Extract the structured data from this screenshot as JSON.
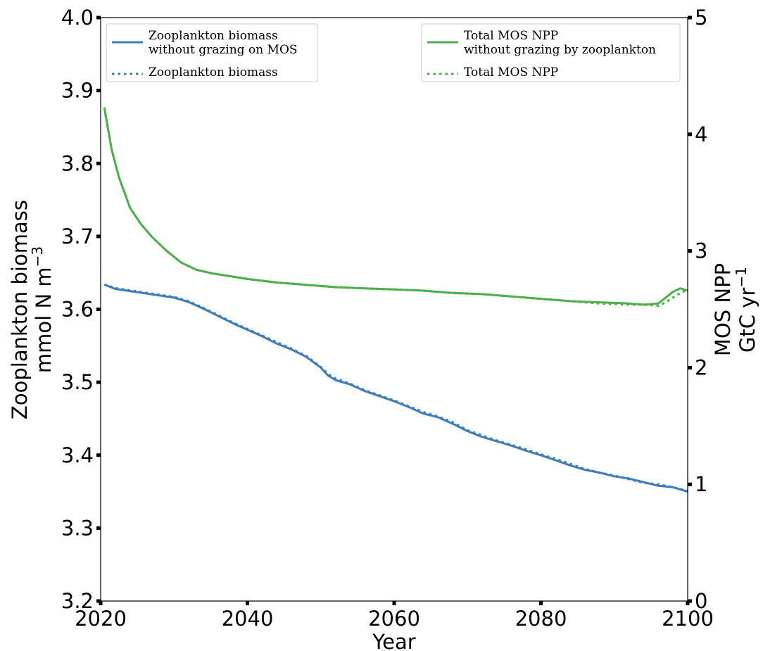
{
  "chart_data": {
    "type": "line",
    "xlabel": "Year",
    "xlim": [
      2020,
      2100
    ],
    "xticks": [
      2020,
      2040,
      2060,
      2080,
      2100
    ],
    "left_axis": {
      "label_line1": "Zooplankton biomass",
      "label_line2_prefix": "mmol N m",
      "label_line2_sup": "−3",
      "ylim": [
        3.2,
        4.0
      ],
      "ticks": [
        "3.2",
        "3.3",
        "3.4",
        "3.5",
        "3.6",
        "3.7",
        "3.8",
        "3.9",
        "4.0"
      ]
    },
    "right_axis": {
      "label_line1": "MOS NPP",
      "label_line2_prefix": "GtC yr",
      "label_line2_sup": "−1",
      "ylim": [
        0,
        5
      ],
      "ticks": [
        "0",
        "1",
        "2",
        "3",
        "4",
        "5"
      ]
    },
    "grid": false,
    "series": [
      {
        "name": "Zooplankton biomass without grazing on MOS",
        "axis": "left",
        "color": "#3a7dbf",
        "style": "solid",
        "x": [
          2020.5,
          2022,
          2024,
          2026,
          2028,
          2030,
          2032,
          2034,
          2036,
          2038,
          2040,
          2042,
          2044,
          2046,
          2048,
          2050,
          2051,
          2052,
          2054,
          2056,
          2058,
          2060,
          2062,
          2064,
          2066,
          2068,
          2070,
          2072,
          2074,
          2076,
          2078,
          2080,
          2082,
          2084,
          2086,
          2088,
          2090,
          2092,
          2094,
          2096,
          2098,
          2100
        ],
        "y": [
          3.634,
          3.628,
          3.625,
          3.622,
          3.619,
          3.616,
          3.61,
          3.601,
          3.591,
          3.581,
          3.572,
          3.563,
          3.553,
          3.545,
          3.535,
          3.52,
          3.509,
          3.503,
          3.497,
          3.488,
          3.481,
          3.474,
          3.466,
          3.457,
          3.452,
          3.443,
          3.433,
          3.425,
          3.419,
          3.413,
          3.406,
          3.4,
          3.393,
          3.386,
          3.38,
          3.376,
          3.371,
          3.368,
          3.363,
          3.358,
          3.356,
          3.35
        ]
      },
      {
        "name": "Zooplankton biomass",
        "axis": "left",
        "color": "#3a7dbf",
        "style": "dotted",
        "x": [
          2020.5,
          2022,
          2024,
          2026,
          2028,
          2030,
          2032,
          2034,
          2036,
          2038,
          2040,
          2042,
          2044,
          2046,
          2048,
          2050,
          2051,
          2052,
          2054,
          2056,
          2058,
          2060,
          2062,
          2064,
          2066,
          2068,
          2070,
          2072,
          2074,
          2076,
          2078,
          2080,
          2082,
          2084,
          2086,
          2088,
          2090,
          2092,
          2094,
          2096,
          2098,
          2100
        ],
        "y": [
          3.634,
          3.629,
          3.626,
          3.623,
          3.62,
          3.617,
          3.611,
          3.602,
          3.592,
          3.582,
          3.573,
          3.564,
          3.555,
          3.546,
          3.536,
          3.521,
          3.511,
          3.505,
          3.498,
          3.489,
          3.482,
          3.475,
          3.467,
          3.459,
          3.453,
          3.445,
          3.434,
          3.427,
          3.42,
          3.414,
          3.408,
          3.401,
          3.395,
          3.388,
          3.381,
          3.376,
          3.372,
          3.367,
          3.362,
          3.36,
          3.356,
          3.351
        ]
      },
      {
        "name": "Total MOS NPP without grazing by zooplankton",
        "axis": "right",
        "color": "#4daf4a",
        "style": "solid",
        "x": [
          2020.5,
          2021.5,
          2022.5,
          2024,
          2025.5,
          2027,
          2029,
          2031,
          2033,
          2035,
          2037,
          2040,
          2044,
          2048,
          2052,
          2056,
          2060,
          2064,
          2068,
          2072,
          2076,
          2080,
          2084,
          2088,
          2092,
          2094,
          2096,
          2097,
          2098,
          2099,
          2100
        ],
        "y": [
          4.23,
          3.87,
          3.63,
          3.37,
          3.23,
          3.12,
          3.0,
          2.9,
          2.84,
          2.81,
          2.79,
          2.76,
          2.73,
          2.71,
          2.69,
          2.68,
          2.67,
          2.66,
          2.64,
          2.63,
          2.61,
          2.59,
          2.57,
          2.56,
          2.55,
          2.54,
          2.55,
          2.6,
          2.65,
          2.68,
          2.66
        ]
      },
      {
        "name": "Total MOS NPP",
        "axis": "right",
        "color": "#4daf4a",
        "style": "dotted",
        "x": [
          2020.5,
          2021.5,
          2022.5,
          2024,
          2025.5,
          2027,
          2029,
          2031,
          2033,
          2035,
          2037,
          2040,
          2044,
          2048,
          2052,
          2056,
          2060,
          2064,
          2068,
          2072,
          2076,
          2080,
          2084,
          2088,
          2092,
          2094,
          2096,
          2097,
          2098,
          2099,
          2100
        ],
        "y": [
          4.23,
          3.87,
          3.63,
          3.37,
          3.23,
          3.12,
          3.0,
          2.9,
          2.84,
          2.81,
          2.79,
          2.76,
          2.73,
          2.71,
          2.69,
          2.68,
          2.67,
          2.66,
          2.64,
          2.63,
          2.61,
          2.59,
          2.57,
          2.55,
          2.54,
          2.54,
          2.53,
          2.56,
          2.6,
          2.64,
          2.67
        ]
      }
    ],
    "legends": [
      {
        "placement": "upper-left",
        "entries": [
          {
            "lines": [
              "Zooplankton biomass",
              "without grazing on MOS"
            ],
            "color": "#3a7dbf",
            "style": "solid"
          },
          {
            "lines": [
              "Zooplankton biomass"
            ],
            "color": "#3a7dbf",
            "style": "dotted"
          }
        ]
      },
      {
        "placement": "upper-right",
        "entries": [
          {
            "lines": [
              "Total MOS NPP",
              "without grazing by zooplankton"
            ],
            "color": "#4daf4a",
            "style": "solid"
          },
          {
            "lines": [
              "Total MOS NPP"
            ],
            "color": "#4daf4a",
            "style": "dotted"
          }
        ]
      }
    ]
  }
}
